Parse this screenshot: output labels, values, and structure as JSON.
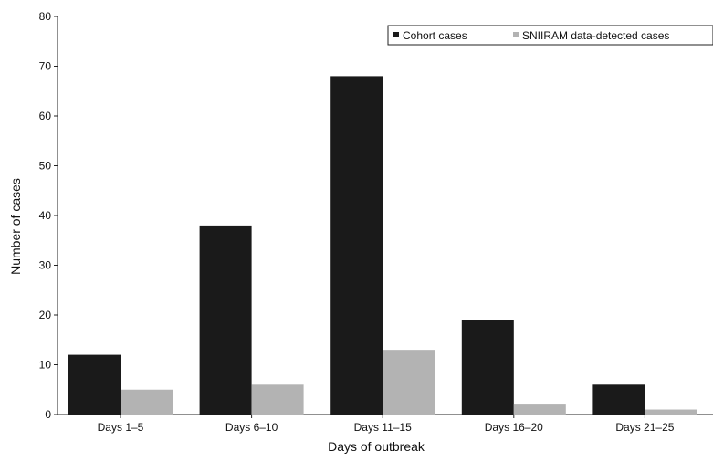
{
  "chart_data": {
    "type": "bar",
    "title": "",
    "xlabel": "Days of outbreak",
    "ylabel": "Number of cases",
    "categories": [
      "Days 1–5",
      "Days 6–10",
      "Days 11–15",
      "Days 16–20",
      "Days 21–25"
    ],
    "series": [
      {
        "name": "Cohort cases",
        "values": [
          12,
          38,
          68,
          19,
          6
        ],
        "color": "#1a1a1a"
      },
      {
        "name": "SNIIRAM data-detected cases",
        "values": [
          5,
          6,
          13,
          2,
          1
        ],
        "color": "#b3b3b3"
      }
    ],
    "ylim": [
      0,
      80
    ],
    "yticks": [
      0,
      10,
      20,
      30,
      40,
      50,
      60,
      70,
      80
    ],
    "grid": false,
    "legend_position": "top-right"
  }
}
